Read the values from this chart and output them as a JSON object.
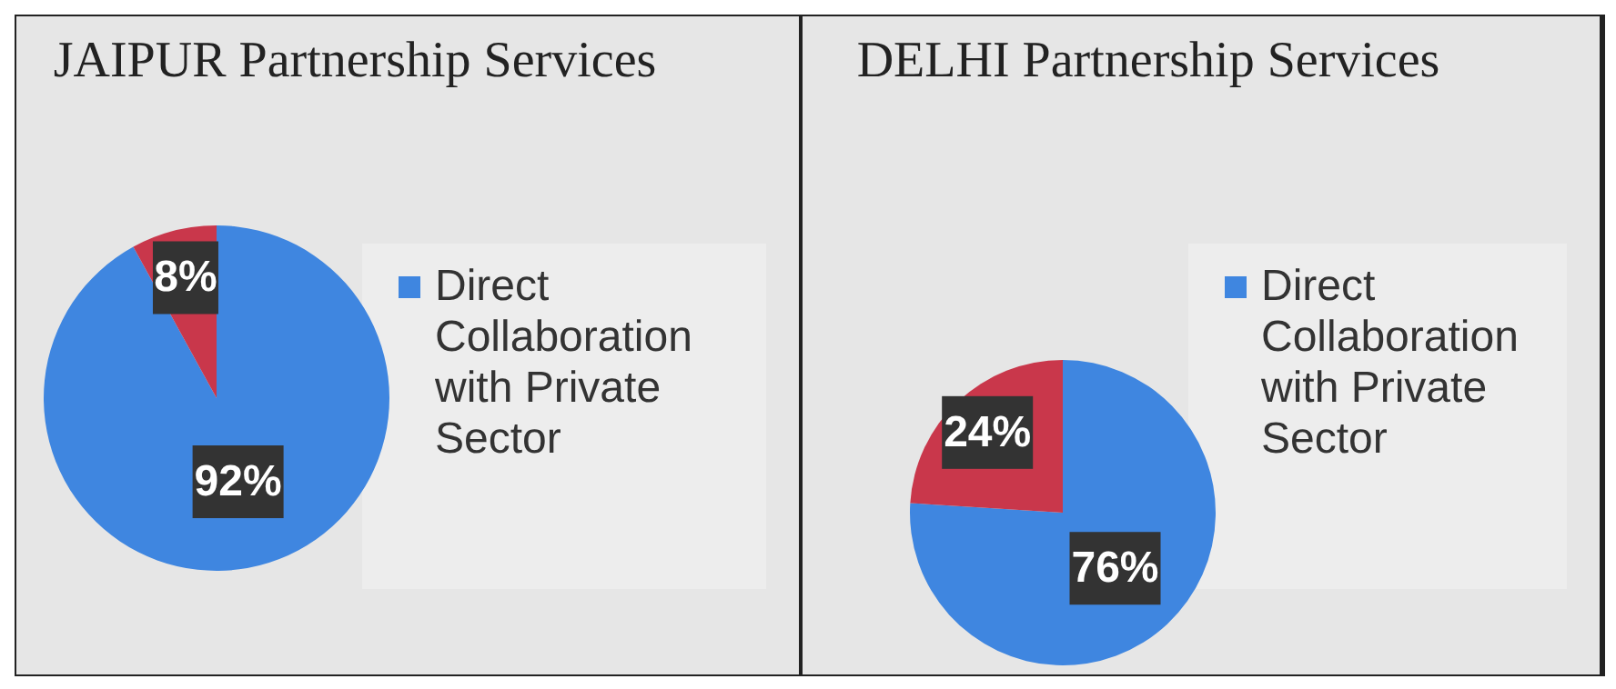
{
  "chart_data": [
    {
      "type": "pie",
      "title": "JAIPUR Partnership Services",
      "categories": [
        "Direct Collaboration with Private Sector",
        null
      ],
      "values": [
        92,
        8
      ],
      "colors": [
        "#3f86e0",
        "#c9374b"
      ],
      "value_labels": [
        "92%",
        "8%"
      ],
      "legend": "right"
    },
    {
      "type": "pie",
      "title": "DELHI  Partnership Services",
      "categories": [
        "Direct Collaboration with Private Sector",
        null
      ],
      "values": [
        76,
        24
      ],
      "colors": [
        "#3f86e0",
        "#c9374b"
      ],
      "value_labels": [
        "76%",
        "24%"
      ],
      "legend": "right"
    }
  ]
}
